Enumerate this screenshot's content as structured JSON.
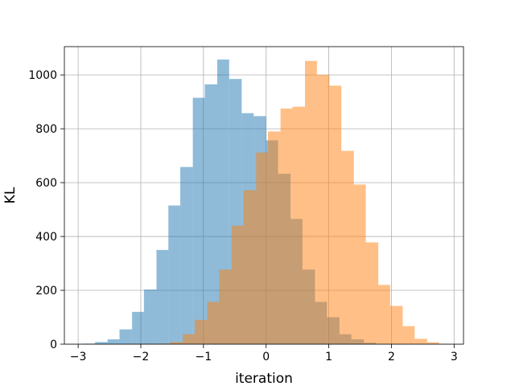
{
  "chart_data": {
    "type": "histogram",
    "title": "",
    "xlabel": "iteration",
    "ylabel": "KL",
    "xlim": [
      -3.22,
      3.15
    ],
    "ylim": [
      0,
      1105
    ],
    "xticks": [
      -3,
      -2,
      -1,
      0,
      1,
      2,
      3
    ],
    "yticks": [
      0,
      200,
      400,
      600,
      800,
      1000
    ],
    "xtick_labels": [
      "−3",
      "−2",
      "−1",
      "0",
      "1",
      "2",
      "3"
    ],
    "ytick_labels": [
      "0",
      "200",
      "400",
      "600",
      "800",
      "1000"
    ],
    "grid": true,
    "series": [
      {
        "color": "#1f77b4",
        "opacity": 0.5,
        "bins": [
          {
            "x0": -2.92,
            "x1": -2.73,
            "count": 2
          },
          {
            "x0": -2.73,
            "x1": -2.53,
            "count": 8
          },
          {
            "x0": -2.53,
            "x1": -2.34,
            "count": 18
          },
          {
            "x0": -2.34,
            "x1": -2.14,
            "count": 55
          },
          {
            "x0": -2.14,
            "x1": -1.95,
            "count": 120
          },
          {
            "x0": -1.95,
            "x1": -1.75,
            "count": 203
          },
          {
            "x0": -1.75,
            "x1": -1.56,
            "count": 350
          },
          {
            "x0": -1.56,
            "x1": -1.37,
            "count": 515
          },
          {
            "x0": -1.37,
            "x1": -1.17,
            "count": 658
          },
          {
            "x0": -1.17,
            "x1": -0.98,
            "count": 915
          },
          {
            "x0": -0.98,
            "x1": -0.78,
            "count": 965
          },
          {
            "x0": -0.78,
            "x1": -0.59,
            "count": 1057
          },
          {
            "x0": -0.59,
            "x1": -0.39,
            "count": 985
          },
          {
            "x0": -0.39,
            "x1": -0.2,
            "count": 858
          },
          {
            "x0": -0.2,
            "x1": 0.0,
            "count": 847
          },
          {
            "x0": 0.0,
            "x1": 0.19,
            "count": 757
          },
          {
            "x0": 0.19,
            "x1": 0.39,
            "count": 633
          },
          {
            "x0": 0.39,
            "x1": 0.58,
            "count": 465
          },
          {
            "x0": 0.58,
            "x1": 0.78,
            "count": 277
          },
          {
            "x0": 0.78,
            "x1": 0.97,
            "count": 157
          },
          {
            "x0": 0.97,
            "x1": 1.17,
            "count": 100
          },
          {
            "x0": 1.17,
            "x1": 1.36,
            "count": 37
          },
          {
            "x0": 1.36,
            "x1": 1.56,
            "count": 18
          },
          {
            "x0": 1.56,
            "x1": 1.75,
            "count": 5
          }
        ]
      },
      {
        "color": "#ff7f0e",
        "opacity": 0.5,
        "bins": [
          {
            "x0": -1.72,
            "x1": -1.53,
            "count": 2
          },
          {
            "x0": -1.53,
            "x1": -1.33,
            "count": 8
          },
          {
            "x0": -1.33,
            "x1": -1.14,
            "count": 37
          },
          {
            "x0": -1.14,
            "x1": -0.94,
            "count": 90
          },
          {
            "x0": -0.94,
            "x1": -0.75,
            "count": 157
          },
          {
            "x0": -0.75,
            "x1": -0.55,
            "count": 277
          },
          {
            "x0": -0.55,
            "x1": -0.36,
            "count": 440
          },
          {
            "x0": -0.36,
            "x1": -0.16,
            "count": 572
          },
          {
            "x0": -0.16,
            "x1": 0.03,
            "count": 712
          },
          {
            "x0": 0.03,
            "x1": 0.23,
            "count": 790
          },
          {
            "x0": 0.23,
            "x1": 0.42,
            "count": 875
          },
          {
            "x0": 0.42,
            "x1": 0.62,
            "count": 882
          },
          {
            "x0": 0.62,
            "x1": 0.81,
            "count": 1052
          },
          {
            "x0": 0.81,
            "x1": 1.01,
            "count": 1000
          },
          {
            "x0": 1.01,
            "x1": 1.2,
            "count": 960
          },
          {
            "x0": 1.2,
            "x1": 1.4,
            "count": 718
          },
          {
            "x0": 1.4,
            "x1": 1.59,
            "count": 593
          },
          {
            "x0": 1.59,
            "x1": 1.79,
            "count": 378
          },
          {
            "x0": 1.79,
            "x1": 1.98,
            "count": 220
          },
          {
            "x0": 1.98,
            "x1": 2.18,
            "count": 142
          },
          {
            "x0": 2.18,
            "x1": 2.37,
            "count": 67
          },
          {
            "x0": 2.37,
            "x1": 2.57,
            "count": 20
          },
          {
            "x0": 2.57,
            "x1": 2.76,
            "count": 7
          }
        ]
      }
    ]
  }
}
